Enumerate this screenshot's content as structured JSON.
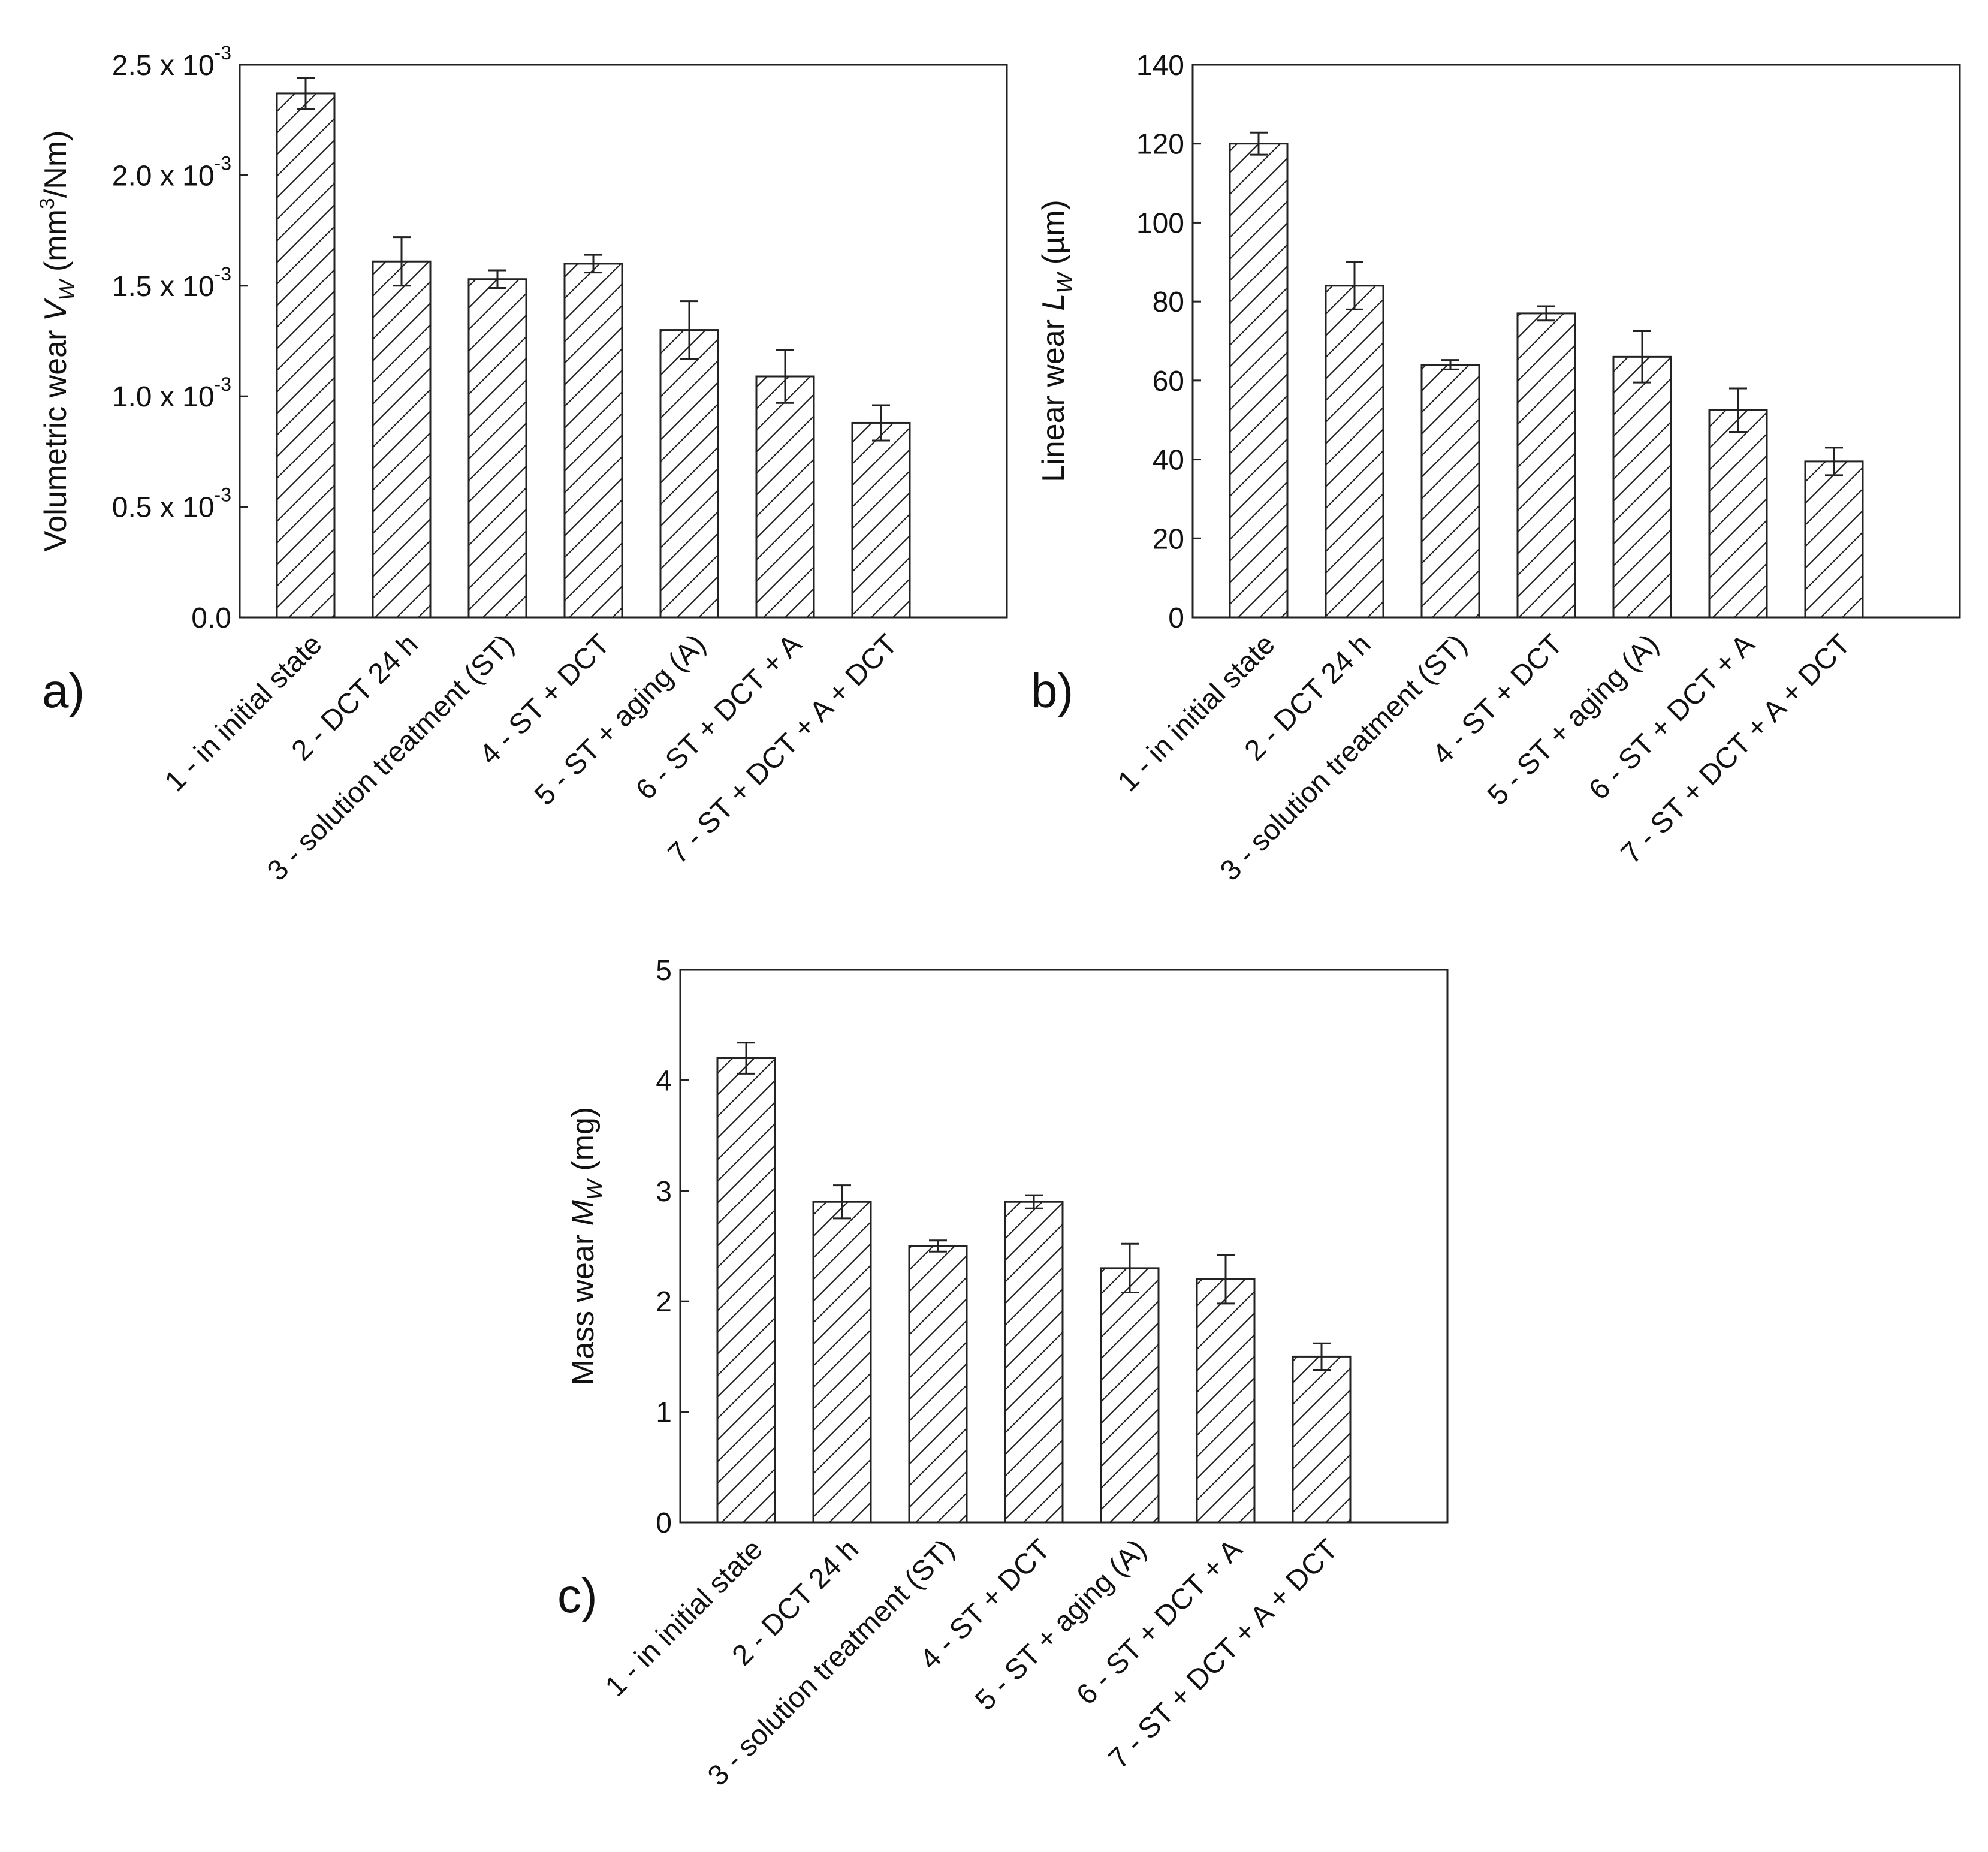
{
  "figure": {
    "colors": {
      "ink": "#222222",
      "background": "#ffffff",
      "bar_fill": "#ffffff"
    }
  },
  "chart_data": [
    {
      "id": "a",
      "type": "bar",
      "panel_label": "a)",
      "title": "",
      "xlabel": "",
      "ylabel": "Volumetric wear VW (mm3/Nm)",
      "ylabel_parts": {
        "main": "Volumetric wear ",
        "var": "V",
        "sub": "W",
        "unit_a": " (mm",
        "sup": "3",
        "unit_b": "/Nm)"
      },
      "ylim": [
        0,
        0.0025
      ],
      "yticks": [
        {
          "value": 0.0,
          "label": "0.0",
          "exp": ""
        },
        {
          "value": 0.0005,
          "label": "0.5 x 10",
          "exp": "-3"
        },
        {
          "value": 0.001,
          "label": "1.0 x 10",
          "exp": "-3"
        },
        {
          "value": 0.0015,
          "label": "1.5 x 10",
          "exp": "-3"
        },
        {
          "value": 0.002,
          "label": "2.0 x 10",
          "exp": "-3"
        },
        {
          "value": 0.0025,
          "label": "2.5 x 10",
          "exp": "-3"
        }
      ],
      "categories": [
        "1 -  in initial state",
        "2 - DCT 24 h",
        "3 - solution treatment (ST)",
        "4 -  ST + DCT",
        "5 - ST + aging (A)",
        "6 - ST + DCT + A",
        "7 - ST + DCT + A + DCT"
      ],
      "values": [
        0.00237,
        0.00161,
        0.00153,
        0.0016,
        0.0013,
        0.00109,
        0.00088
      ],
      "errors": [
        7e-05,
        0.00011,
        4e-05,
        4e-05,
        0.00013,
        0.00012,
        8e-05
      ],
      "grid": false,
      "legend": "none"
    },
    {
      "id": "b",
      "type": "bar",
      "panel_label": "b)",
      "title": "",
      "xlabel": "",
      "ylabel": "Linear wear LW (µm)",
      "ylabel_parts": {
        "main": "Linear wear ",
        "var": "L",
        "sub": "W",
        "unit_a": " (µm)",
        "sup": "",
        "unit_b": ""
      },
      "ylim": [
        0,
        140
      ],
      "yticks": [
        {
          "value": 0,
          "label": "0",
          "exp": ""
        },
        {
          "value": 20,
          "label": "20",
          "exp": ""
        },
        {
          "value": 40,
          "label": "40",
          "exp": ""
        },
        {
          "value": 60,
          "label": "60",
          "exp": ""
        },
        {
          "value": 80,
          "label": "80",
          "exp": ""
        },
        {
          "value": 100,
          "label": "100",
          "exp": ""
        },
        {
          "value": 120,
          "label": "120",
          "exp": ""
        },
        {
          "value": 140,
          "label": "140",
          "exp": ""
        }
      ],
      "categories": [
        "1 -  in initial state",
        "2 - DCT 24 h",
        "3 - solution treatment (ST)",
        "4 -  ST + DCT",
        "5 - ST + aging (A)",
        "6 - ST + DCT + A",
        "7 - ST + DCT + A + DCT"
      ],
      "values": [
        120,
        84,
        64,
        77,
        66,
        52.5,
        39.5
      ],
      "errors": [
        2.8,
        6,
        1.2,
        1.8,
        6.5,
        5.5,
        3.5
      ],
      "grid": false,
      "legend": "none"
    },
    {
      "id": "c",
      "type": "bar",
      "panel_label": "c)",
      "title": "",
      "xlabel": "",
      "ylabel": "Mass wear MW (mg)",
      "ylabel_parts": {
        "main": "Mass wear ",
        "var": "M",
        "sub": "W",
        "unit_a": " (mg)",
        "sup": "",
        "unit_b": ""
      },
      "ylim": [
        0,
        5
      ],
      "yticks": [
        {
          "value": 0,
          "label": "0",
          "exp": ""
        },
        {
          "value": 1,
          "label": "1",
          "exp": ""
        },
        {
          "value": 2,
          "label": "2",
          "exp": ""
        },
        {
          "value": 3,
          "label": "3",
          "exp": ""
        },
        {
          "value": 4,
          "label": "4",
          "exp": ""
        },
        {
          "value": 5,
          "label": "5",
          "exp": ""
        }
      ],
      "categories": [
        "1 -  in initial state",
        "2 - DCT 24 h",
        "3 - solution treatment (ST)",
        "4 -  ST + DCT",
        "5 - ST + aging (A)",
        "6 - ST + DCT + A",
        "7 - ST + DCT + A + DCT"
      ],
      "values": [
        4.2,
        2.9,
        2.5,
        2.9,
        2.3,
        2.2,
        1.5
      ],
      "errors": [
        0.14,
        0.15,
        0.05,
        0.06,
        0.22,
        0.22,
        0.12
      ],
      "grid": false,
      "legend": "none"
    }
  ]
}
